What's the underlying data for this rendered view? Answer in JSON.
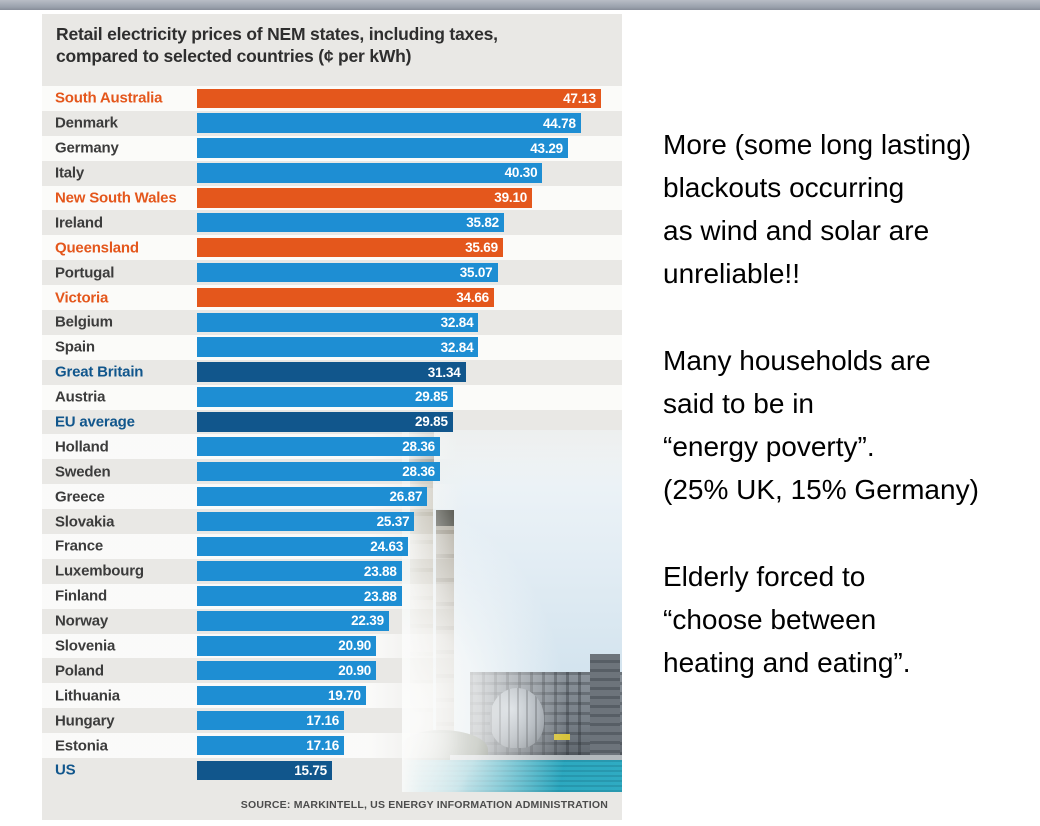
{
  "chart_data": {
    "type": "bar",
    "orientation": "horizontal",
    "title_line1": "Retail electricity prices of NEM states, including taxes,",
    "title_line2": "compared to selected countries (¢ per kWh)",
    "unit": "¢ per kWh",
    "xlim": [
      0,
      47.13
    ],
    "grid": false,
    "legend": "none",
    "rows": [
      {
        "label": "South Australia",
        "value": 47.13,
        "group": "nem"
      },
      {
        "label": "Denmark",
        "value": 44.78,
        "group": "country"
      },
      {
        "label": "Germany",
        "value": 43.29,
        "group": "country"
      },
      {
        "label": "Italy",
        "value": 40.3,
        "group": "country"
      },
      {
        "label": "New South Wales",
        "value": 39.1,
        "group": "nem"
      },
      {
        "label": "Ireland",
        "value": 35.82,
        "group": "country"
      },
      {
        "label": "Queensland",
        "value": 35.69,
        "group": "nem"
      },
      {
        "label": "Portugal",
        "value": 35.07,
        "group": "country"
      },
      {
        "label": "Victoria",
        "value": 34.66,
        "group": "nem"
      },
      {
        "label": "Belgium",
        "value": 32.84,
        "group": "country"
      },
      {
        "label": "Spain",
        "value": 32.84,
        "group": "country"
      },
      {
        "label": "Great Britain",
        "value": 31.34,
        "group": "benchmark"
      },
      {
        "label": "Austria",
        "value": 29.85,
        "group": "country"
      },
      {
        "label": "EU average",
        "value": 29.85,
        "group": "benchmark"
      },
      {
        "label": "Holland",
        "value": 28.36,
        "group": "country"
      },
      {
        "label": "Sweden",
        "value": 28.36,
        "group": "country"
      },
      {
        "label": "Greece",
        "value": 26.87,
        "group": "country"
      },
      {
        "label": "Slovakia",
        "value": 25.37,
        "group": "country"
      },
      {
        "label": "France",
        "value": 24.63,
        "group": "country"
      },
      {
        "label": "Luxembourg",
        "value": 23.88,
        "group": "country"
      },
      {
        "label": "Finland",
        "value": 23.88,
        "group": "country"
      },
      {
        "label": "Norway",
        "value": 22.39,
        "group": "country"
      },
      {
        "label": "Slovenia",
        "value": 20.9,
        "group": "country"
      },
      {
        "label": "Poland",
        "value": 20.9,
        "group": "country"
      },
      {
        "label": "Lithuania",
        "value": 19.7,
        "group": "country"
      },
      {
        "label": "Hungary",
        "value": 17.16,
        "group": "country"
      },
      {
        "label": "Estonia",
        "value": 17.16,
        "group": "country"
      },
      {
        "label": "US",
        "value": 15.75,
        "group": "benchmark"
      }
    ],
    "colors": {
      "nem": "#e4571c",
      "country": "#1e8ed3",
      "benchmark": "#11568c",
      "panel_background": "#e9e8e5"
    },
    "source": "SOURCE: MARKINTELL, US ENERGY INFORMATION ADMINISTRATION"
  },
  "annotation": {
    "paragraphs": [
      [
        "More (some long lasting)",
        "blackouts occurring",
        "as wind and solar are",
        "unreliable!!"
      ],
      [
        "Many households are",
        "said to be in",
        "“energy poverty”.",
        "(25% UK, 15% Germany)"
      ],
      [
        "Elderly forced to",
        "“choose between",
        "heating and eating”."
      ]
    ]
  }
}
